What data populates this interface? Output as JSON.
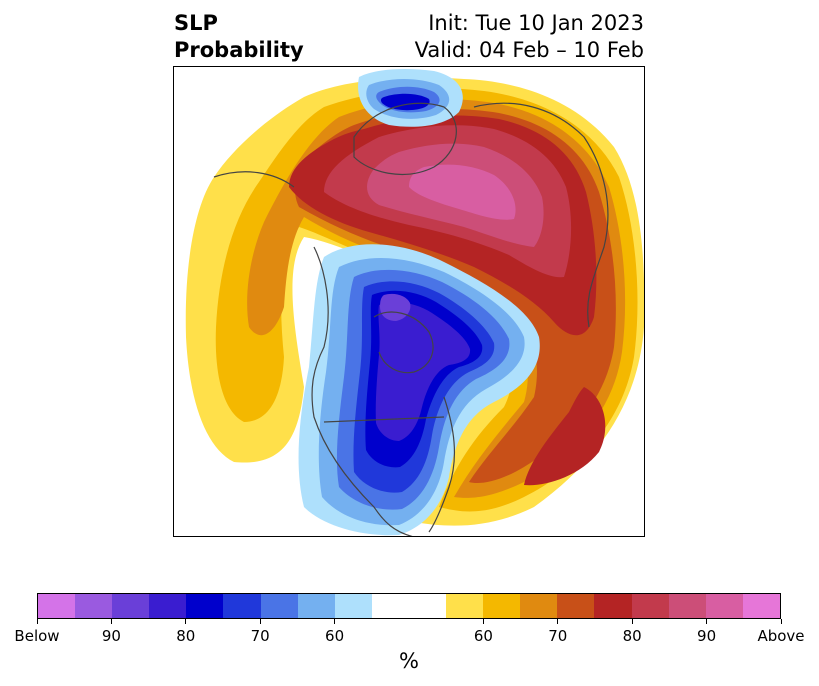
{
  "title": {
    "left_line1": "SLP",
    "left_line2": "Probability",
    "right_line1": "Init: Tue 10 Jan 2023",
    "right_line2": "Valid: 04 Feb – 10 Feb"
  },
  "colorbar": {
    "colors": [
      "#d473e8",
      "#9a5ae0",
      "#6a3fd8",
      "#3a1dd0",
      "#0000cc",
      "#2038da",
      "#4a74e6",
      "#74b0f0",
      "#aee0fc",
      "#ffffff",
      "#ffffff",
      "#ffe04a",
      "#f4b800",
      "#e08a10",
      "#c85018",
      "#b42424",
      "#c23a4c",
      "#cc4e78",
      "#d85ea2",
      "#e676d8"
    ],
    "ticks": [
      "Below",
      "90",
      "80",
      "70",
      "60",
      "60",
      "70",
      "80",
      "90",
      "Above"
    ],
    "unit": "%"
  },
  "map": {
    "fill_colors": {
      "yellow": "#ffe04a",
      "gold": "#f4b800",
      "orange": "#e08a10",
      "dark-orange": "#c85018",
      "red": "#b42424",
      "crimson": "#c23a4c",
      "rose": "#cc4e78",
      "pink": "#d85ea2",
      "light-blue": "#aee0fc",
      "sky-blue": "#74b0f0",
      "blue": "#4a74e6",
      "royal-blue": "#2038da",
      "deep-blue": "#0000cc",
      "indigo": "#3a1dd0",
      "violet": "#6a3fd8",
      "purple": "#9a5ae0"
    },
    "coastline_color": "#444444"
  }
}
